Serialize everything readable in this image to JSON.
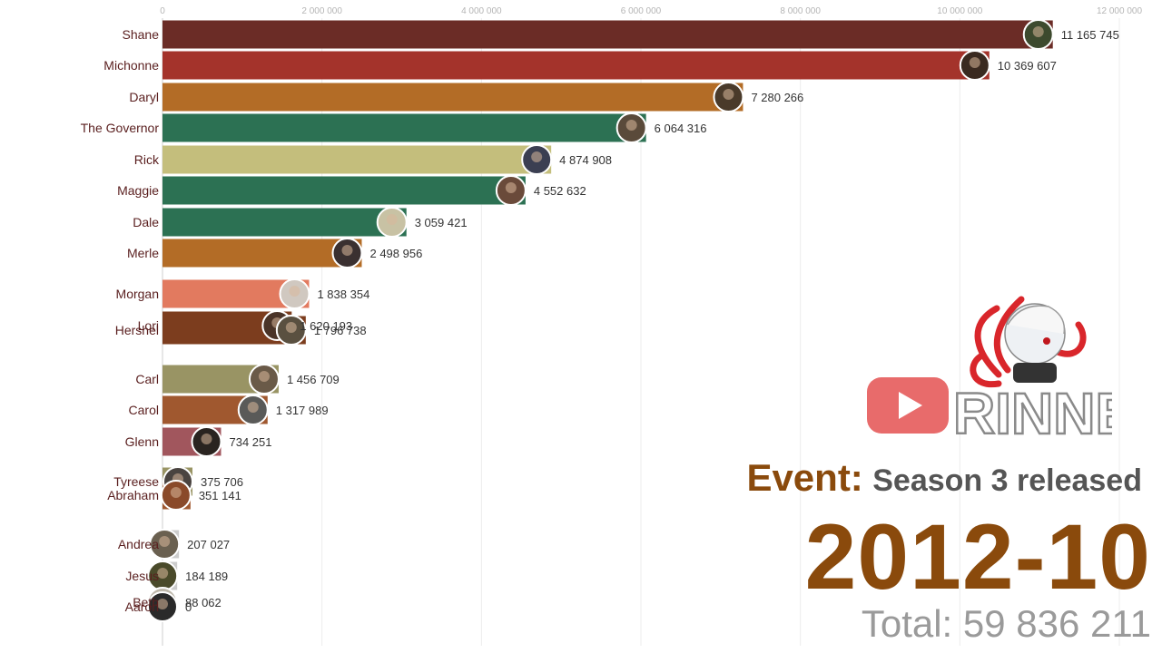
{
  "chart_data": {
    "type": "bar",
    "orientation": "horizontal",
    "categories": [
      "Shane",
      "Michonne",
      "Daryl",
      "The Governor",
      "Rick",
      "Maggie",
      "Dale",
      "Merle",
      "Morgan",
      "Lori",
      "Hershel",
      "Carl",
      "Carol",
      "Glenn",
      "Tyreese",
      "Abraham",
      "Andrea",
      "Jesus",
      "Beth",
      "Aaron"
    ],
    "values": [
      11165745,
      10369607,
      7280266,
      6064316,
      4874908,
      4552632,
      3059421,
      2498956,
      1838354,
      1620193,
      1796738,
      1456709,
      1317989,
      734251,
      375706,
      351141,
      207027,
      184189,
      88062,
      0
    ],
    "value_labels": [
      "11 165 745",
      "10 369 607",
      "7 280 266",
      "6 064 316",
      "4 874 908",
      "4 552 632",
      "3 059 421",
      "2 498 956",
      "1 838 354",
      "1 620 193",
      "1 796 738",
      "1 456 709",
      "1 317 989",
      "734 251",
      "375 706",
      "351 141",
      "207 027",
      "184 189",
      "88 062",
      "0"
    ],
    "colors": [
      "#6b2c26",
      "#a4332b",
      "#b36c26",
      "#2c7153",
      "#c4be7c",
      "#2c7153",
      "#2c7153",
      "#b36c26",
      "#e27a5f",
      "#7c3d1e",
      "#7c3d1e",
      "#999464",
      "#a0582f",
      "#a1565d",
      "#999464",
      "#a0582f",
      "#cccccc",
      "#cccccc",
      "#cccccc",
      "#cccccc"
    ],
    "xlim": [
      0,
      12000000
    ],
    "xticks": [
      0,
      2000000,
      4000000,
      6000000,
      8000000,
      10000000,
      12000000
    ],
    "xtick_labels": [
      "0",
      "2 000 000",
      "4 000 000",
      "6 000 000",
      "8 000 000",
      "10 000 000",
      "12 000 000"
    ],
    "grid": true
  },
  "event": {
    "prefix": "Event:",
    "text": "Season 3 released"
  },
  "date": "2012-10",
  "total": "Total: 59 836 211",
  "logo": {
    "text": "RINNE",
    "icon": "youtube-play-icon"
  }
}
